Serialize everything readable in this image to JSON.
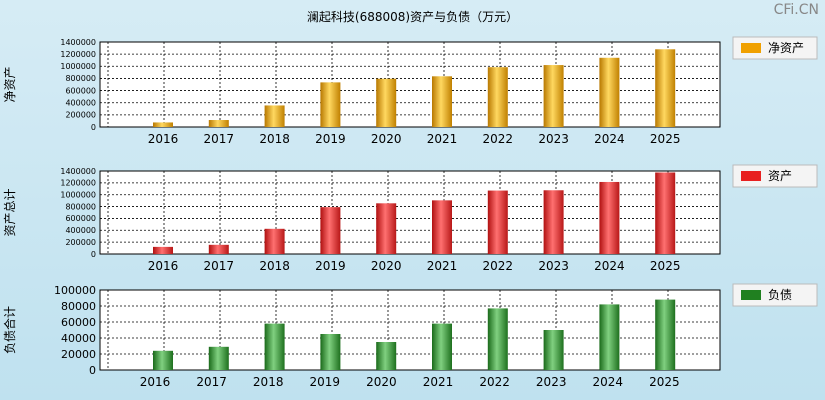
{
  "title": "澜起科技(688008)资产与负债（万元）",
  "watermark": "CFi.CN",
  "chart_data": [
    {
      "type": "bar",
      "ylabel": "净资产",
      "legend": "净资产",
      "color": "#f0a000",
      "categories": [
        "2016",
        "2017",
        "2018",
        "2019",
        "2020",
        "2021",
        "2022",
        "2023",
        "2024",
        "2025"
      ],
      "values": [
        75000,
        115000,
        355000,
        735000,
        795000,
        835000,
        985000,
        1020000,
        1140000,
        1280000
      ],
      "ylim": [
        0,
        1400000
      ],
      "ticks": [
        0,
        200000,
        400000,
        600000,
        800000,
        1000000,
        1200000,
        1400000
      ]
    },
    {
      "type": "bar",
      "ylabel": "资产总计",
      "legend": "资产",
      "color": "#e82020",
      "categories": [
        "2016",
        "2017",
        "2018",
        "2019",
        "2020",
        "2021",
        "2022",
        "2023",
        "2024",
        "2025"
      ],
      "values": [
        120000,
        155000,
        425000,
        790000,
        855000,
        905000,
        1070000,
        1075000,
        1215000,
        1375000
      ],
      "ylim": [
        0,
        1400000
      ],
      "ticks": [
        0,
        200000,
        400000,
        600000,
        800000,
        1000000,
        1200000,
        1400000
      ]
    },
    {
      "type": "bar",
      "ylabel": "负债合计",
      "legend": "负债",
      "color": "#208020",
      "categories": [
        "2016",
        "2017",
        "2018",
        "2019",
        "2020",
        "2021",
        "2022",
        "2023",
        "2024",
        "2025"
      ],
      "values": [
        24000,
        29000,
        58000,
        45000,
        35000,
        58000,
        77000,
        50000,
        82000,
        88000
      ],
      "ylim": [
        0,
        100000
      ],
      "ticks": [
        0,
        20000,
        40000,
        60000,
        80000,
        100000
      ]
    }
  ]
}
